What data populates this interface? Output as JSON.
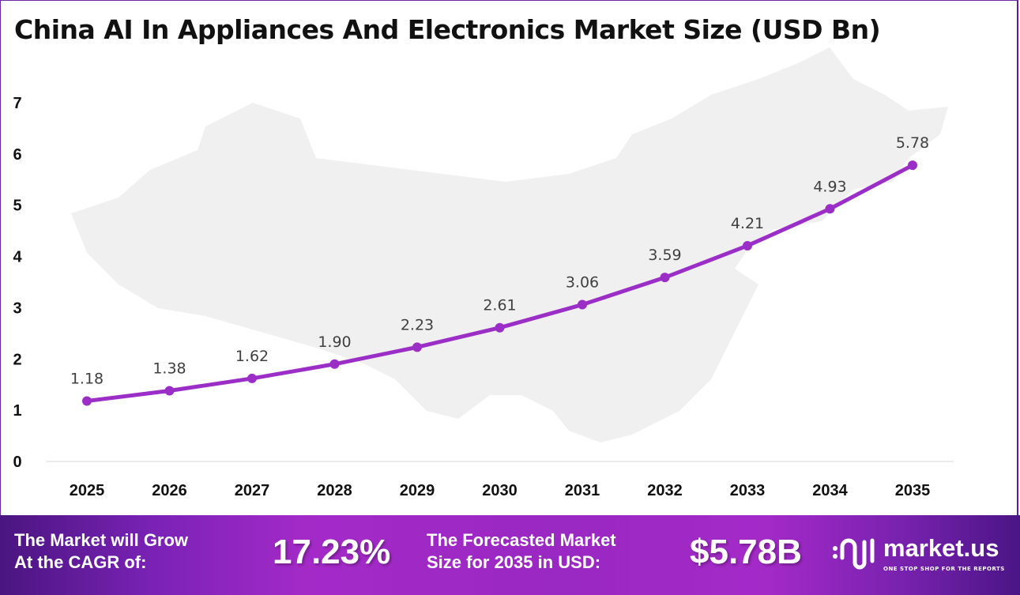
{
  "chart_data": {
    "type": "line",
    "title": "China AI In Appliances And Electronics Market Size (USD Bn)",
    "categories": [
      "2025",
      "2026",
      "2027",
      "2028",
      "2029",
      "2030",
      "2031",
      "2032",
      "2033",
      "2034",
      "2035"
    ],
    "values": [
      1.18,
      1.38,
      1.62,
      1.9,
      2.23,
      2.61,
      3.06,
      3.59,
      4.21,
      4.93,
      5.78
    ],
    "data_labels": [
      "1.18",
      "1.38",
      "1.62",
      "1.90",
      "2.23",
      "2.61",
      "3.06",
      "3.59",
      "4.21",
      "4.93",
      "5.78"
    ],
    "yticks": [
      "0",
      "1",
      "2",
      "3",
      "4",
      "5",
      "6",
      "7"
    ],
    "ylim": [
      0,
      7
    ],
    "grid": false,
    "line_color": "#9b2ec6"
  },
  "banner": {
    "cagr_label": [
      "The Market will Grow",
      "At the CAGR of:"
    ],
    "cagr_value": "17.23%",
    "forecast_label": [
      "The Forecasted Market",
      "Size for 2035 in USD:"
    ],
    "forecast_value": "$5.78B",
    "logo_name": "market.us",
    "logo_tagline": "ONE STOP SHOP FOR THE REPORTS"
  }
}
